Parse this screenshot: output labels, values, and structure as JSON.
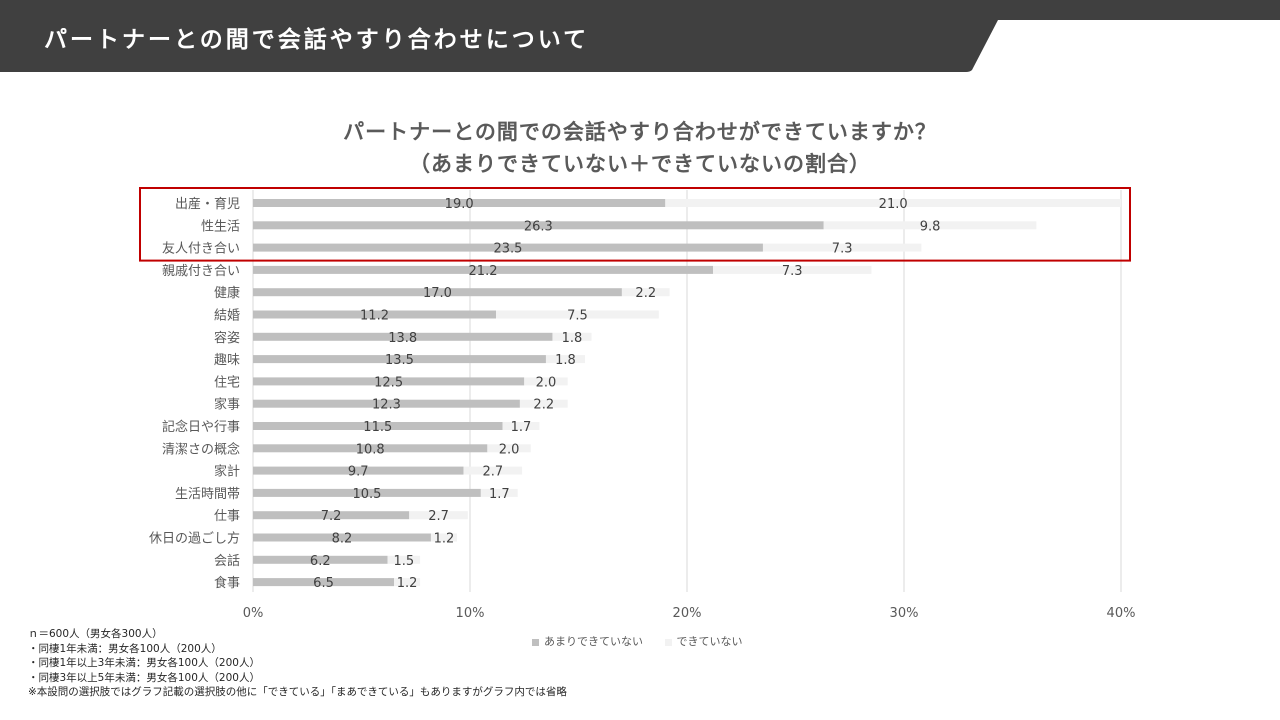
{
  "header": {
    "title": "パートナーとの間で会話やすり合わせについて"
  },
  "chart_data": {
    "type": "bar",
    "orientation": "horizontal",
    "stacked": true,
    "title": [
      "パートナーとの間での会話やすり合わせができていますか？",
      "（あまりできていない＋できていないの割合）"
    ],
    "categories": [
      "出産・育児",
      "性生活",
      "友人付き合い",
      "親戚付き合い",
      "健康",
      "結婚",
      "容姿",
      "趣味",
      "住宅",
      "家事",
      "記念日や行事",
      "清潔さの概念",
      "家計",
      "生活時間帯",
      "仕事",
      "休日の過ごし方",
      "会話",
      "食事"
    ],
    "series": [
      {
        "name": "あまりできていない",
        "color": "#bfbfbf",
        "values": [
          19.0,
          26.3,
          23.5,
          21.2,
          17.0,
          11.2,
          13.8,
          13.5,
          12.5,
          12.3,
          11.5,
          10.8,
          9.7,
          10.5,
          7.2,
          8.2,
          6.2,
          6.5
        ]
      },
      {
        "name": "できていない",
        "color": "#f2f2f2",
        "values": [
          21.0,
          9.8,
          7.3,
          7.3,
          2.2,
          7.5,
          1.8,
          1.8,
          2.0,
          2.2,
          1.7,
          2.0,
          2.7,
          1.7,
          2.7,
          1.2,
          1.5,
          1.2
        ]
      }
    ],
    "x_ticks": [
      "0%",
      "10%",
      "20%",
      "30%",
      "40%"
    ],
    "xlim": [
      0,
      40
    ],
    "grid": true,
    "legend_position": "bottom",
    "highlight": {
      "categories": [
        "出産・育児",
        "性生活",
        "友人付き合い"
      ],
      "color": "#c00000"
    }
  },
  "colors": {
    "header_bg": "#404040",
    "highlight_box": "#c00000",
    "gridline": "#d9d9d9"
  },
  "notes": [
    "ｎ＝600人（男女各300人）",
    "・同棲1年未満：男女各100人（200人）",
    "・同棲1年以上3年未満：男女各100人（200人）",
    "・同棲3年以上5年未満：男女各100人（200人）",
    "※本設問の選択肢ではグラフ記載の選択肢の他に「できている」「まあできている」もありますがグラフ内では省略"
  ]
}
